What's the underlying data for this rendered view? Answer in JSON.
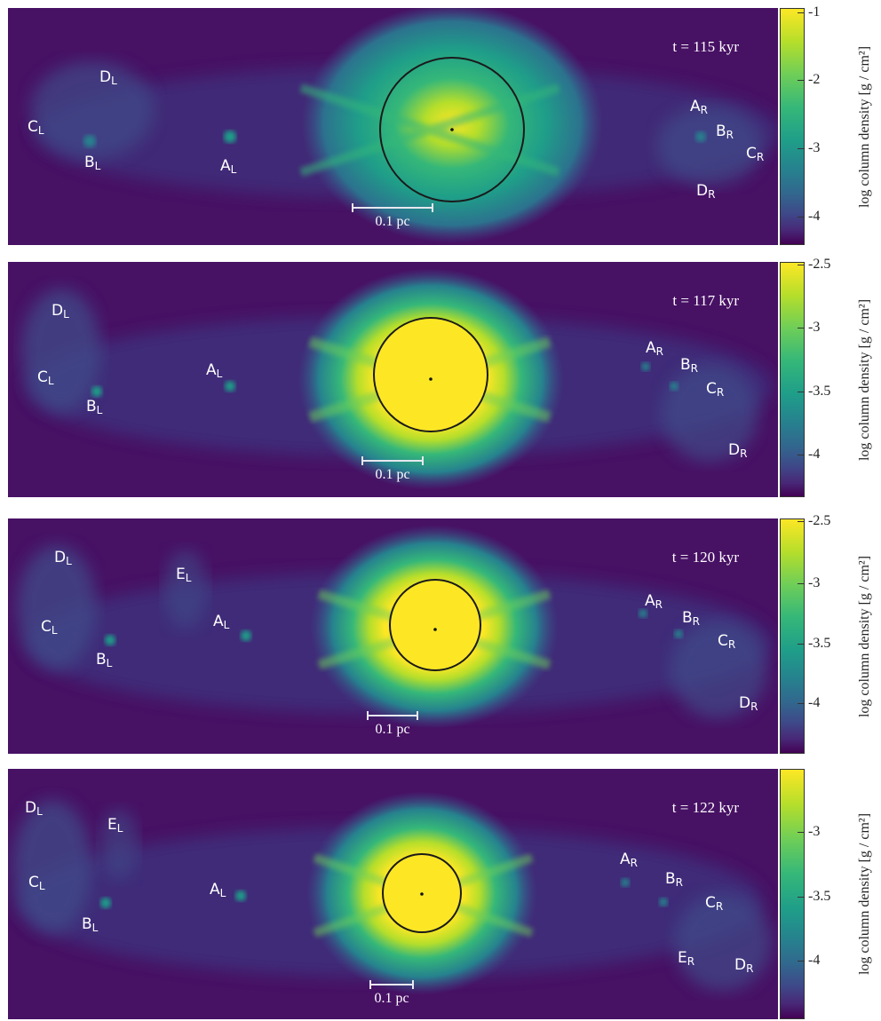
{
  "colorbar_title": "log column density [g / cm²]",
  "scale_label": "0.1 pc",
  "colormap": [
    "#440154",
    "#482878",
    "#3e4989",
    "#31688e",
    "#26828e",
    "#1f9e89",
    "#35b779",
    "#6ece58",
    "#b5de2b",
    "#fde725"
  ],
  "panels": [
    {
      "time": "t = 115 kyr",
      "ticks": [
        "-1",
        "-2",
        "-3",
        "-4"
      ],
      "labels": {
        "DL": {
          "l": "D",
          "s": "L"
        },
        "CL": {
          "l": "C",
          "s": "L"
        },
        "BL": {
          "l": "B",
          "s": "L"
        },
        "AL": {
          "l": "A",
          "s": "L"
        },
        "AR": {
          "l": "A",
          "s": "R"
        },
        "BR": {
          "l": "B",
          "s": "R"
        },
        "CR": {
          "l": "C",
          "s": "R"
        },
        "DR": {
          "l": "D",
          "s": "R"
        }
      }
    },
    {
      "time": "t = 117 kyr",
      "ticks": [
        "-2.5",
        "-3",
        "-3.5",
        "-4"
      ],
      "labels": {
        "DL": {
          "l": "D",
          "s": "L"
        },
        "CL": {
          "l": "C",
          "s": "L"
        },
        "BL": {
          "l": "B",
          "s": "L"
        },
        "AL": {
          "l": "A",
          "s": "L"
        },
        "AR": {
          "l": "A",
          "s": "R"
        },
        "BR": {
          "l": "B",
          "s": "R"
        },
        "CR": {
          "l": "C",
          "s": "R"
        },
        "DR": {
          "l": "D",
          "s": "R"
        }
      }
    },
    {
      "time": "t = 120 kyr",
      "ticks": [
        "-2.5",
        "-3",
        "-3.5",
        "-4"
      ],
      "labels": {
        "DL": {
          "l": "D",
          "s": "L"
        },
        "EL": {
          "l": "E",
          "s": "L"
        },
        "CL": {
          "l": "C",
          "s": "L"
        },
        "BL": {
          "l": "B",
          "s": "L"
        },
        "AL": {
          "l": "A",
          "s": "L"
        },
        "AR": {
          "l": "A",
          "s": "R"
        },
        "BR": {
          "l": "B",
          "s": "R"
        },
        "CR": {
          "l": "C",
          "s": "R"
        },
        "DR": {
          "l": "D",
          "s": "R"
        }
      }
    },
    {
      "time": "t = 122 kyr",
      "ticks": [
        "-3",
        "-3.5",
        "-4"
      ],
      "labels": {
        "DL": {
          "l": "D",
          "s": "L"
        },
        "EL": {
          "l": "E",
          "s": "L"
        },
        "CL": {
          "l": "C",
          "s": "L"
        },
        "BL": {
          "l": "B",
          "s": "L"
        },
        "AL": {
          "l": "A",
          "s": "L"
        },
        "AR": {
          "l": "A",
          "s": "R"
        },
        "BR": {
          "l": "B",
          "s": "R"
        },
        "CR": {
          "l": "C",
          "s": "R"
        },
        "ER": {
          "l": "E",
          "s": "R"
        },
        "DR": {
          "l": "D",
          "s": "R"
        }
      }
    }
  ]
}
